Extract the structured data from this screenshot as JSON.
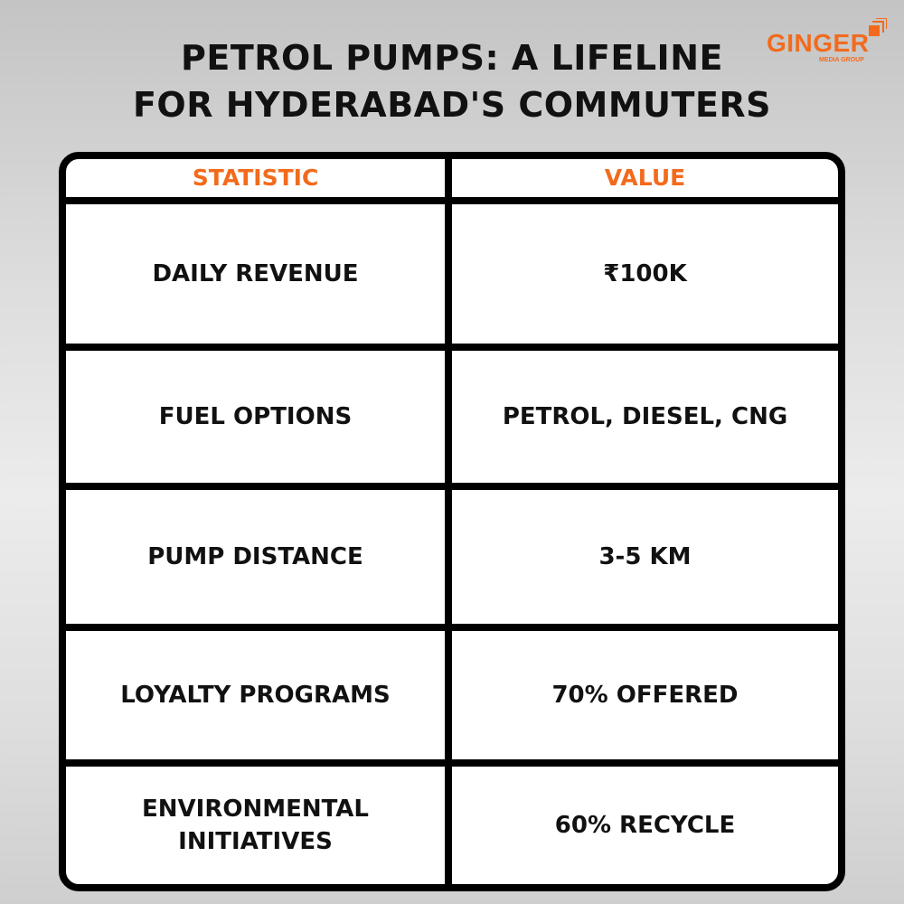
{
  "title": {
    "line1": "PETROL PUMPS: A LIFELINE",
    "line2": "FOR HYDERABAD'S COMMUTERS"
  },
  "logo": {
    "name": "GINGER",
    "subtitle": "MEDIA GROUP",
    "color": "#f26b1d"
  },
  "table": {
    "headers": [
      "STATISTIC",
      "VALUE"
    ],
    "rows": [
      {
        "statistic": "DAILY REVENUE",
        "value": "₹100K"
      },
      {
        "statistic": "FUEL OPTIONS",
        "value": "PETROL, DIESEL, CNG"
      },
      {
        "statistic": "PUMP DISTANCE",
        "value": "3-5 KM"
      },
      {
        "statistic": "LOYALTY PROGRAMS",
        "value": "70% OFFERED"
      },
      {
        "statistic": "ENVIRONMENTAL INITIATIVES",
        "value": "60% RECYCLE"
      }
    ]
  }
}
